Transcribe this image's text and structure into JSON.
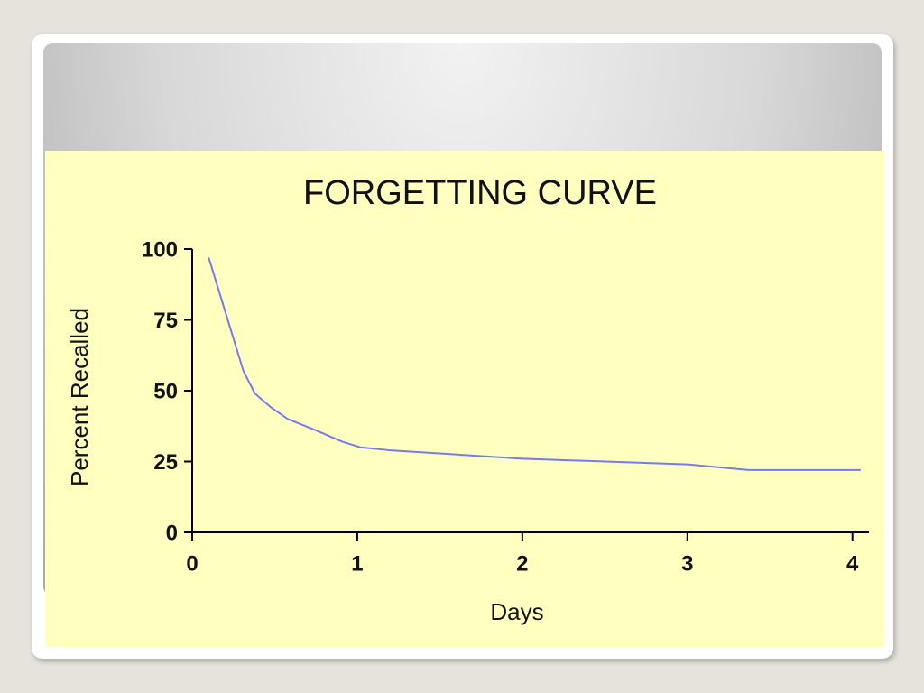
{
  "chart_data": {
    "type": "line",
    "title": "FORGETTING CURVE",
    "x_label": "Days",
    "y_label": "Percent Recalled",
    "x": [
      0.1,
      0.31,
      0.38,
      0.48,
      0.58,
      0.75,
      0.91,
      1.02,
      1.19,
      2,
      3,
      3.37,
      4.05
    ],
    "values": [
      97,
      57,
      49,
      44,
      40,
      36,
      32,
      30,
      29,
      26,
      24,
      22,
      22
    ],
    "color": "#7878f0",
    "xlim": [
      0,
      4.1
    ],
    "xticks": [
      0,
      1,
      2,
      3,
      4
    ],
    "ylim": [
      0,
      100
    ],
    "yticks": [
      0,
      25,
      50,
      75,
      100
    ],
    "grid": false
  }
}
